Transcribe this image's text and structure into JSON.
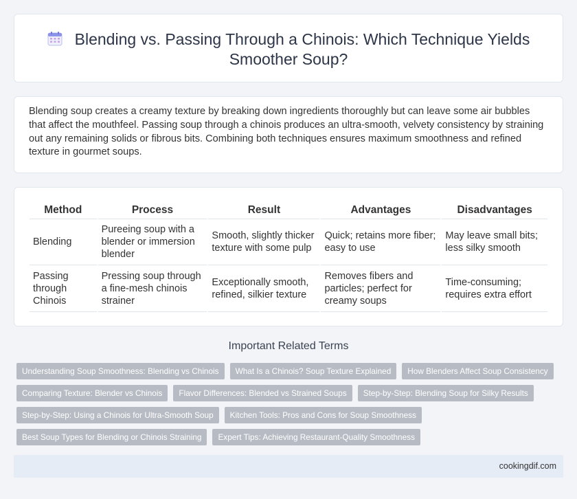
{
  "header": {
    "icon": "calendar-icon",
    "title": "Blending vs. Passing Through a Chinois: Which Technique Yields Smoother Soup?"
  },
  "intro": {
    "text": "Blending soup creates a creamy texture by breaking down ingredients thoroughly but can leave some air bubbles that affect the mouthfeel. Passing soup through a chinois produces an ultra-smooth, velvety consistency by straining out any remaining solids or fibrous bits. Combining both techniques ensures maximum smoothness and refined texture in gourmet soups."
  },
  "table": {
    "headers": [
      "Method",
      "Process",
      "Result",
      "Advantages",
      "Disadvantages"
    ],
    "rows": [
      [
        "Blending",
        "Pureeing soup with a blender or immersion blender",
        "Smooth, slightly thicker texture with some pulp",
        "Quick; retains more fiber; easy to use",
        "May leave small bits; less silky smooth"
      ],
      [
        "Passing through Chinois",
        "Pressing soup through a fine-mesh chinois strainer",
        "Exceptionally smooth, refined, silkier texture",
        "Removes fibers and particles; perfect for creamy soups",
        "Time-consuming; requires extra effort"
      ]
    ]
  },
  "related": {
    "title": "Important Related Terms",
    "tags": [
      [
        "Understanding Soup Smoothness: Blending vs Chinois",
        "What Is a Chinois? Soup Texture Explained",
        "How Blenders Affect Soup Consistency"
      ],
      [
        "Comparing Texture: Blender vs Chinois",
        "Flavor Differences: Blended vs Strained Soups",
        "Step-by-Step: Blending Soup for Silky Results"
      ],
      [
        "Step-by-Step: Using a Chinois for Ultra-Smooth Soup",
        "Kitchen Tools: Pros and Cons for Soup Smoothness"
      ],
      [
        "Best Soup Types for Blending or Chinois Straining",
        "Expert Tips: Achieving Restaurant-Quality Smoothness"
      ]
    ]
  },
  "footer": {
    "site": "cookingdif.com"
  },
  "colors": {
    "tag_bg": "#b7bcc4",
    "footer_bg": "#e6ecf6",
    "page_bg": "#f2f4f8"
  }
}
